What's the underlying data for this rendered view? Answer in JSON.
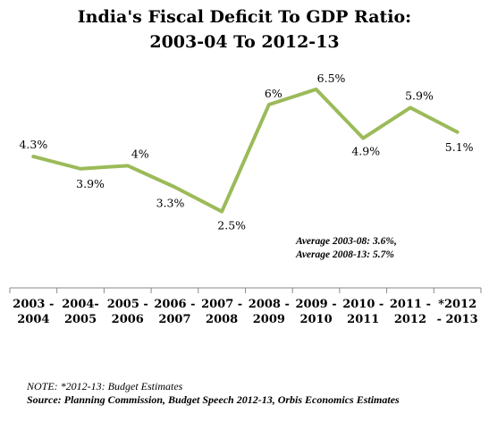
{
  "chart_data": {
    "type": "line",
    "title": "India's Fiscal Deficit To GDP Ratio:",
    "subtitle": "2003-04 To 2012-13",
    "categories": [
      [
        "2003 -",
        "2004"
      ],
      [
        "2004-",
        "2005"
      ],
      [
        "2005 -",
        "2006"
      ],
      [
        "2006 -",
        "2007"
      ],
      [
        "2007 -",
        "2008"
      ],
      [
        "2008 -",
        "2009"
      ],
      [
        "2009 -",
        "2010"
      ],
      [
        "2010 -",
        "2011"
      ],
      [
        "2011 -",
        "2012"
      ],
      [
        "*2012",
        "- 2013"
      ]
    ],
    "series": [
      {
        "values": [
          4.3,
          3.9,
          4.0,
          3.3,
          2.5,
          6.0,
          6.5,
          4.9,
          5.9,
          5.1
        ],
        "labels": [
          "4.3%",
          "3.9%",
          "4%",
          "3.3%",
          "2.5%",
          "6%",
          "6.5%",
          "4.9%",
          "5.9%",
          "5.1%"
        ],
        "color": "#9BBB59"
      }
    ],
    "ylim": [
      0,
      9
    ],
    "grid": false,
    "annotations": [
      "Average 2003-08: 3.6%,",
      "Average 2008-13: 5.7%"
    ]
  },
  "footer": {
    "note": "NOTE: *2012-13: Budget Estimates",
    "source": "Source: Planning Commission, Budget Speech 2012-13, Orbis Economics Estimates"
  }
}
